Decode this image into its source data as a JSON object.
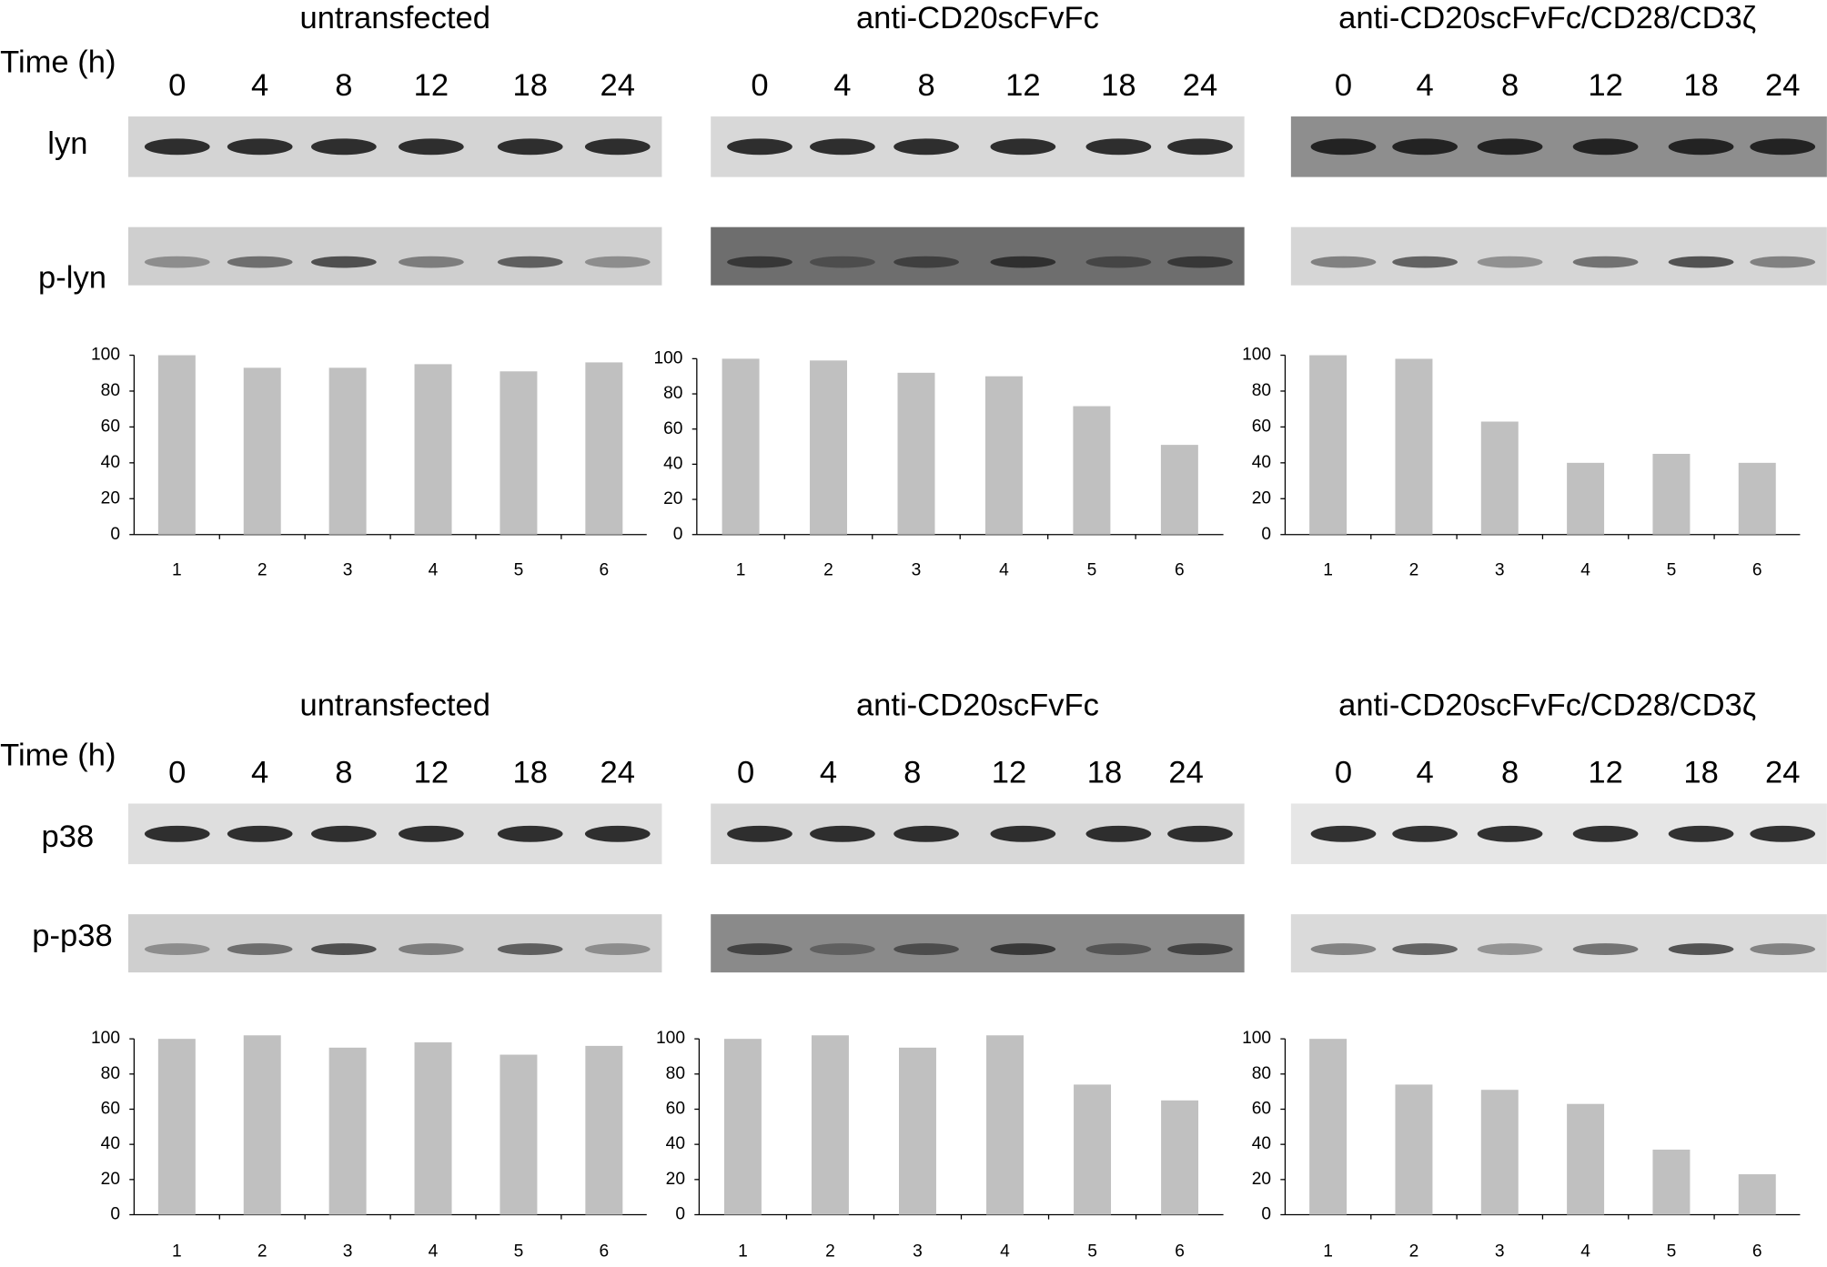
{
  "sections": [
    {
      "time_label": "Time (h)",
      "blots": [
        "lyn",
        "p-lyn"
      ],
      "groups": [
        {
          "title": "untransfected",
          "times": [
            0,
            4,
            8,
            12,
            18,
            24
          ]
        },
        {
          "title": "anti-CD20scFvFc",
          "times": [
            0,
            4,
            8,
            12,
            18,
            24
          ]
        },
        {
          "title": "anti-CD20scFvFc/CD28/CD3ζ",
          "times": [
            0,
            4,
            8,
            12,
            18,
            24
          ]
        }
      ]
    },
    {
      "time_label": "Time (h)",
      "blots": [
        "p38",
        "p-p38"
      ],
      "groups": [
        {
          "title": "untransfected",
          "times": [
            0,
            4,
            8,
            12,
            18,
            24
          ]
        },
        {
          "title": "anti-CD20scFvFc",
          "times": [
            0,
            4,
            8,
            12,
            18,
            24
          ]
        },
        {
          "title": "anti-CD20scFvFc/CD28/CD3ζ",
          "times": [
            0,
            4,
            8,
            12,
            18,
            24
          ]
        }
      ]
    }
  ],
  "chart_data": [
    {
      "type": "bar",
      "categories": [
        "1",
        "2",
        "3",
        "4",
        "5",
        "6"
      ],
      "values": [
        100,
        93,
        93,
        95,
        91,
        96
      ],
      "color": "#c0c0c0",
      "ylim": [
        0,
        100
      ],
      "yticks": [
        0,
        20,
        40,
        60,
        80,
        100
      ]
    },
    {
      "type": "bar",
      "categories": [
        "1",
        "2",
        "3",
        "4",
        "5",
        "6"
      ],
      "values": [
        100,
        99,
        92,
        90,
        73,
        51
      ],
      "color": "#c0c0c0",
      "ylim": [
        0,
        100
      ],
      "yticks": [
        0,
        20,
        40,
        60,
        80,
        100
      ]
    },
    {
      "type": "bar",
      "categories": [
        "1",
        "2",
        "3",
        "4",
        "5",
        "6"
      ],
      "values": [
        100,
        98,
        63,
        40,
        45,
        40
      ],
      "color": "#c0c0c0",
      "ylim": [
        0,
        100
      ],
      "yticks": [
        0,
        20,
        40,
        60,
        80,
        100
      ]
    },
    {
      "type": "bar",
      "categories": [
        "1",
        "2",
        "3",
        "4",
        "5",
        "6"
      ],
      "values": [
        100,
        102,
        95,
        98,
        91,
        96
      ],
      "color": "#c0c0c0",
      "ylim": [
        0,
        100
      ],
      "yticks": [
        0,
        20,
        40,
        60,
        80,
        100
      ]
    },
    {
      "type": "bar",
      "categories": [
        "1",
        "2",
        "3",
        "4",
        "5",
        "6"
      ],
      "values": [
        100,
        102,
        95,
        102,
        74,
        65
      ],
      "color": "#c0c0c0",
      "ylim": [
        0,
        100
      ],
      "yticks": [
        0,
        20,
        40,
        60,
        80,
        100
      ]
    },
    {
      "type": "bar",
      "categories": [
        "1",
        "2",
        "3",
        "4",
        "5",
        "6"
      ],
      "values": [
        100,
        74,
        71,
        63,
        37,
        23
      ],
      "color": "#c0c0c0",
      "ylim": [
        0,
        100
      ],
      "yticks": [
        0,
        20,
        40,
        60,
        80,
        100
      ]
    }
  ]
}
